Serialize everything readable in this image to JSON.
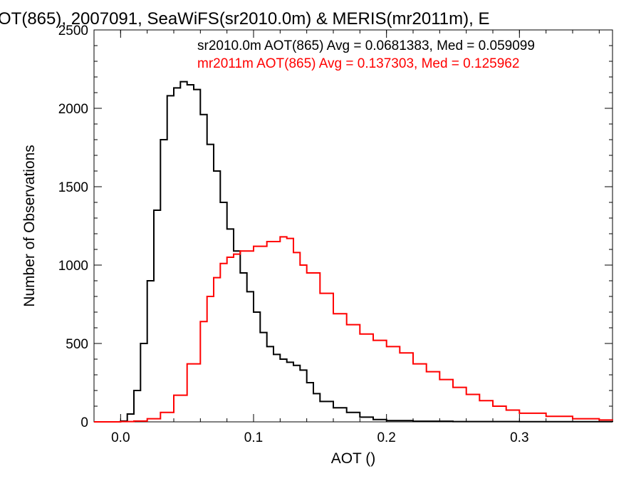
{
  "chart_data": {
    "type": "line",
    "title": "OT(865), 2007091, SeaWiFS(sr2010.0m) & MERIS(mr2011m), E",
    "xlabel": "AOT ()",
    "ylabel": "Number of Observations",
    "xlim": [
      -0.02,
      0.37
    ],
    "ylim": [
      0,
      2500
    ],
    "xticks": [
      0.0,
      0.1,
      0.2,
      0.3
    ],
    "xtick_labels": [
      "0.0",
      "0.1",
      "0.2",
      "0.3"
    ],
    "yticks": [
      0,
      500,
      1000,
      1500,
      2000,
      2500
    ],
    "ytick_labels": [
      "0",
      "500",
      "1000",
      "1500",
      "2000",
      "2500"
    ],
    "grid": false,
    "annotations": [
      {
        "text": "sr2010.0m AOT(865) Avg = 0.0681383, Med = 0.059099",
        "color": "#000000"
      },
      {
        "text": "mr2011m AOT(865) Avg = 0.137303, Med = 0.125962",
        "color": "#ff0000"
      }
    ],
    "series": [
      {
        "color": "#000000",
        "style": "step",
        "x": [
          -0.02,
          0.0,
          0.005,
          0.01,
          0.015,
          0.02,
          0.025,
          0.03,
          0.035,
          0.04,
          0.045,
          0.05,
          0.055,
          0.06,
          0.065,
          0.07,
          0.075,
          0.08,
          0.085,
          0.09,
          0.095,
          0.1,
          0.105,
          0.11,
          0.115,
          0.12,
          0.125,
          0.13,
          0.135,
          0.14,
          0.145,
          0.15,
          0.16,
          0.17,
          0.18,
          0.19,
          0.2,
          0.22,
          0.25,
          0.3,
          0.37
        ],
        "y": [
          0,
          5,
          50,
          200,
          500,
          900,
          1350,
          1800,
          2080,
          2130,
          2170,
          2150,
          2120,
          1960,
          1770,
          1600,
          1400,
          1230,
          1090,
          950,
          830,
          700,
          570,
          480,
          430,
          400,
          380,
          360,
          330,
          250,
          180,
          130,
          90,
          60,
          30,
          15,
          8,
          4,
          2,
          1,
          0
        ]
      },
      {
        "color": "#ff0000",
        "style": "step",
        "x": [
          -0.02,
          0.0,
          0.01,
          0.02,
          0.03,
          0.04,
          0.05,
          0.06,
          0.065,
          0.07,
          0.075,
          0.08,
          0.085,
          0.09,
          0.1,
          0.11,
          0.12,
          0.125,
          0.13,
          0.135,
          0.14,
          0.15,
          0.16,
          0.17,
          0.18,
          0.19,
          0.2,
          0.21,
          0.22,
          0.23,
          0.24,
          0.25,
          0.26,
          0.27,
          0.28,
          0.29,
          0.3,
          0.32,
          0.34,
          0.36,
          0.37
        ],
        "y": [
          0,
          2,
          5,
          20,
          60,
          170,
          370,
          640,
          800,
          920,
          1010,
          1050,
          1070,
          1090,
          1120,
          1150,
          1180,
          1170,
          1080,
          1000,
          950,
          820,
          690,
          620,
          560,
          520,
          480,
          440,
          370,
          320,
          270,
          220,
          175,
          135,
          100,
          75,
          55,
          35,
          20,
          12,
          10
        ]
      }
    ]
  }
}
